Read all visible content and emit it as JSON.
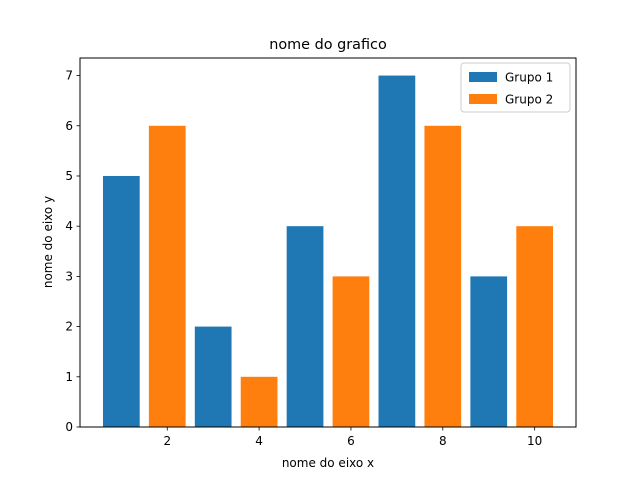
{
  "chart_data": {
    "type": "bar",
    "title": "nome do grafico",
    "xlabel": "nome do eixo x",
    "ylabel": "nome do eixo y",
    "xlim": [
      0.1,
      10.9
    ],
    "ylim": [
      0,
      7.35
    ],
    "xticks": [
      2,
      4,
      6,
      8,
      10
    ],
    "yticks": [
      0,
      1,
      2,
      3,
      4,
      5,
      6,
      7
    ],
    "bar_width": 0.8,
    "legend_position": "top-right",
    "grid": false,
    "series": [
      {
        "name": "Grupo 1",
        "color": "#1f77b4",
        "x": [
          1,
          3,
          5,
          7,
          9
        ],
        "values": [
          5,
          2,
          4,
          7,
          3
        ]
      },
      {
        "name": "Grupo 2",
        "color": "#ff7f0e",
        "x": [
          2,
          4,
          6,
          8,
          10
        ],
        "values": [
          6,
          1,
          3,
          6,
          4
        ]
      }
    ]
  }
}
